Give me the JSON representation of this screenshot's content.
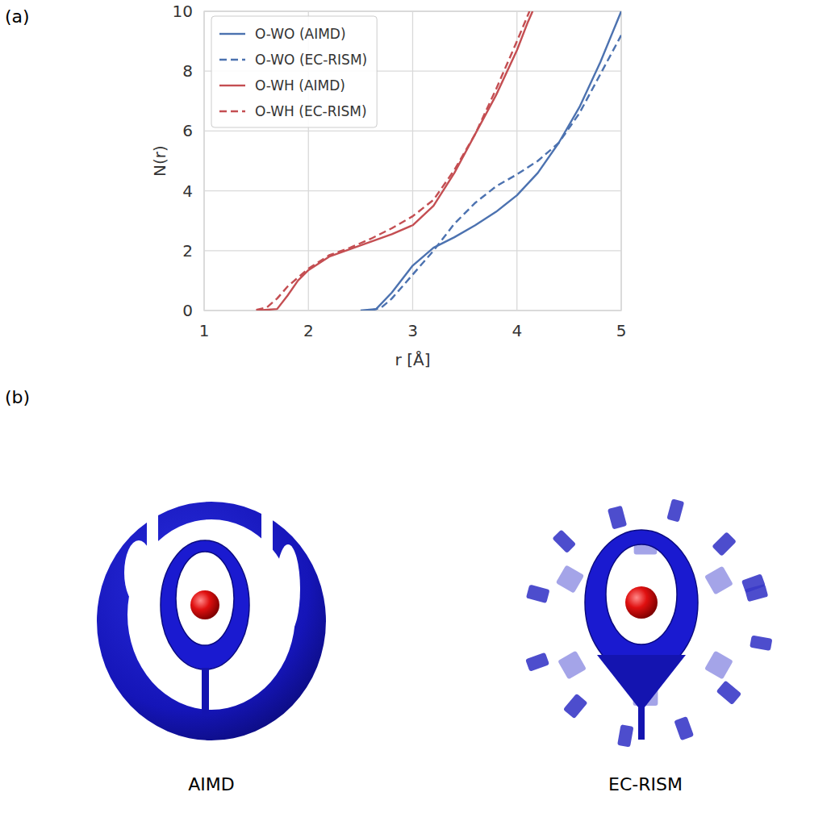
{
  "chart_data": {
    "type": "line",
    "x_label": "r [Å]",
    "y_label": "N(r)",
    "xlim": [
      1,
      5
    ],
    "xticks": [
      1,
      2,
      3,
      4,
      5
    ],
    "ylim": [
      0,
      10
    ],
    "yticks": [
      0,
      2,
      4,
      6,
      8,
      10
    ],
    "grid": true,
    "legend": "upper left",
    "series": [
      {
        "name": "O-WO (AIMD)",
        "color": "#4c72b0",
        "line_style": "solid",
        "x": [
          2.5,
          2.65,
          2.8,
          3.0,
          3.2,
          3.4,
          3.6,
          3.8,
          4.0,
          4.2,
          4.4,
          4.6,
          4.8,
          5.0
        ],
        "values": [
          0,
          0.05,
          0.6,
          1.5,
          2.1,
          2.45,
          2.85,
          3.3,
          3.85,
          4.6,
          5.6,
          6.8,
          8.3,
          10.0
        ]
      },
      {
        "name": "O-WO (EC-RISM)",
        "color": "#4c72b0",
        "line_style": "dashed",
        "x": [
          2.6,
          2.7,
          2.8,
          3.0,
          3.2,
          3.4,
          3.6,
          3.8,
          4.0,
          4.2,
          4.4,
          4.6,
          4.8,
          5.0
        ],
        "values": [
          0,
          0.1,
          0.4,
          1.2,
          2.0,
          2.9,
          3.6,
          4.15,
          4.55,
          5.0,
          5.6,
          6.6,
          7.9,
          9.2
        ]
      },
      {
        "name": "O-WH (AIMD)",
        "color": "#c44e52",
        "line_style": "solid",
        "x": [
          1.5,
          1.7,
          1.8,
          1.9,
          2.0,
          2.2,
          2.4,
          2.6,
          2.8,
          3.0,
          3.2,
          3.4,
          3.6,
          3.8,
          4.0,
          4.1,
          4.15
        ],
        "values": [
          0,
          0.05,
          0.5,
          1.0,
          1.35,
          1.8,
          2.05,
          2.3,
          2.55,
          2.85,
          3.5,
          4.6,
          5.9,
          7.2,
          8.7,
          9.6,
          10.0
        ]
      },
      {
        "name": "O-WH (EC-RISM)",
        "color": "#c44e52",
        "line_style": "dashed",
        "x": [
          1.5,
          1.6,
          1.7,
          1.8,
          1.9,
          2.0,
          2.2,
          2.4,
          2.6,
          2.8,
          3.0,
          3.2,
          3.4,
          3.6,
          3.8,
          4.0,
          4.12
        ],
        "values": [
          0.02,
          0.1,
          0.4,
          0.8,
          1.1,
          1.4,
          1.85,
          2.1,
          2.4,
          2.75,
          3.15,
          3.7,
          4.7,
          5.9,
          7.4,
          9.0,
          10.0
        ]
      }
    ]
  },
  "figure": {
    "panel_labels": [
      "(a)",
      "(b)"
    ],
    "images": [
      {
        "caption": "AIMD"
      },
      {
        "caption": "EC-RISM"
      }
    ]
  }
}
